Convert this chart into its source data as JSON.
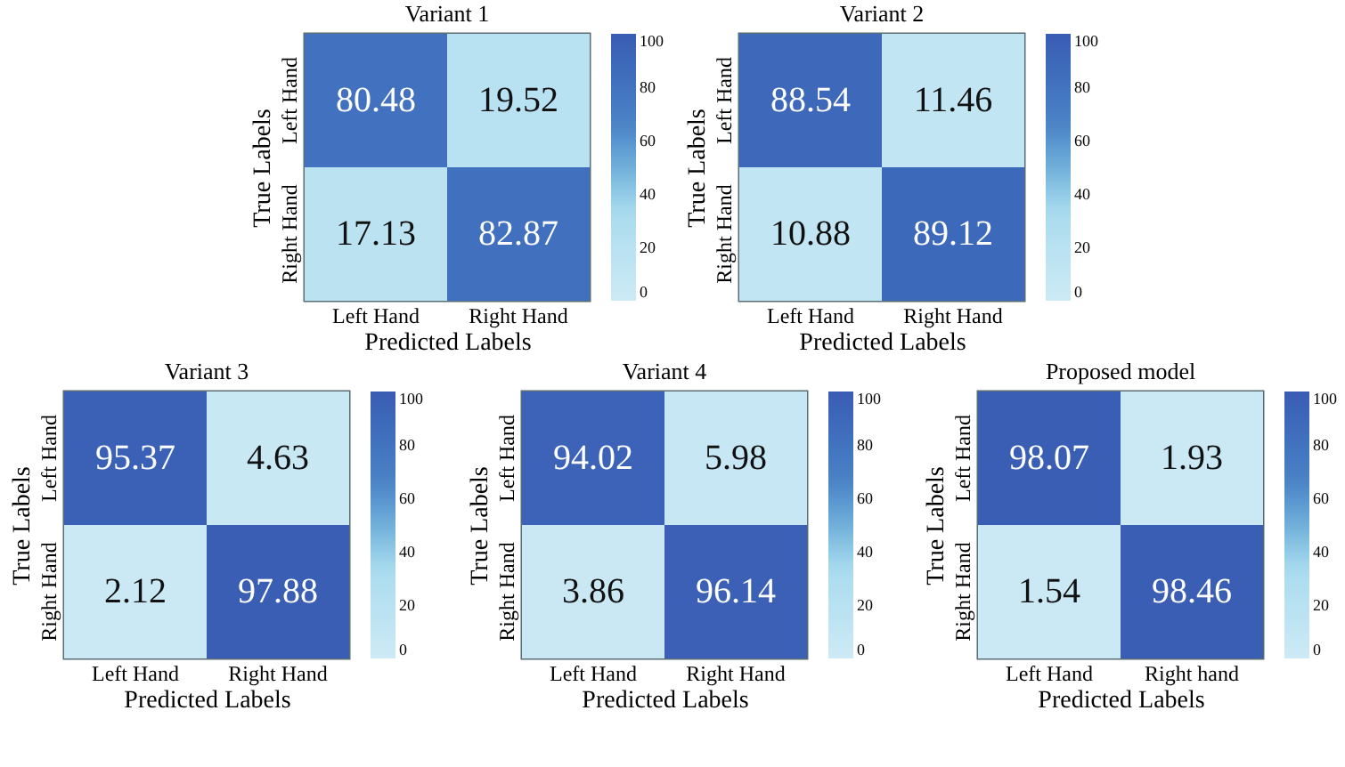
{
  "chart_data": [
    {
      "type": "heatmap",
      "data_labels": true,
      "title": "Variant 1",
      "xlabel": "Predicted Labels",
      "ylabel": "True Labels",
      "categories": [
        "Left Hand",
        "Right Hand"
      ],
      "y_categories": [
        "Left Hand",
        "Right Hand"
      ],
      "cells": [
        [
          80.48,
          19.52
        ],
        [
          17.13,
          82.87
        ]
      ],
      "clim": [
        0,
        100
      ],
      "cticks": [
        0,
        20,
        40,
        60,
        80,
        100
      ]
    },
    {
      "type": "heatmap",
      "data_labels": true,
      "title": "Variant 2",
      "xlabel": "Predicted Labels",
      "ylabel": "True Labels",
      "categories": [
        "Left Hand",
        "Right Hand"
      ],
      "y_categories": [
        "Left Hand",
        "Right Hand"
      ],
      "cells": [
        [
          88.54,
          11.46
        ],
        [
          10.88,
          89.12
        ]
      ],
      "clim": [
        0,
        100
      ],
      "cticks": [
        0,
        20,
        40,
        60,
        80,
        100
      ]
    },
    {
      "type": "heatmap",
      "data_labels": true,
      "title": "Variant 3",
      "xlabel": "Predicted Labels",
      "ylabel": "True Labels",
      "categories": [
        "Left Hand",
        "Right Hand"
      ],
      "y_categories": [
        "Left Hand",
        "Right Hand"
      ],
      "cells": [
        [
          95.37,
          4.63
        ],
        [
          2.12,
          97.88
        ]
      ],
      "clim": [
        0,
        100
      ],
      "cticks": [
        0,
        20,
        40,
        60,
        80,
        100
      ]
    },
    {
      "type": "heatmap",
      "data_labels": true,
      "title": "Variant 4",
      "xlabel": "Predicted Labels",
      "ylabel": "True Labels",
      "categories": [
        "Left Hand",
        "Right Hand"
      ],
      "y_categories": [
        "Left Hand",
        "Right Hand"
      ],
      "cells": [
        [
          94.02,
          5.98
        ],
        [
          3.86,
          96.14
        ]
      ],
      "clim": [
        0,
        100
      ],
      "cticks": [
        0,
        20,
        40,
        60,
        80,
        100
      ]
    },
    {
      "type": "heatmap",
      "data_labels": true,
      "title": "Proposed model",
      "xlabel": "Predicted Labels",
      "ylabel": "True Labels",
      "categories": [
        "Left Hand",
        "Right hand"
      ],
      "y_categories": [
        "Left Hand",
        "Right Hand"
      ],
      "cells": [
        [
          98.07,
          1.93
        ],
        [
          1.54,
          98.46
        ]
      ],
      "clim": [
        0,
        100
      ],
      "cticks": [
        0,
        20,
        40,
        60,
        80,
        100
      ]
    }
  ]
}
